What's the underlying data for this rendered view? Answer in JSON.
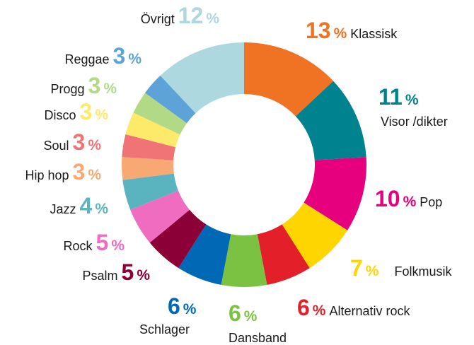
{
  "chart_data": {
    "type": "donut",
    "unit": "%",
    "categories": [
      "Klassisk",
      "Visor /dikter",
      "Pop",
      "Folkmusik",
      "Alternativ rock",
      "Dansband",
      "Schlager",
      "Psalm",
      "Rock",
      "Jazz",
      "Hip hop",
      "Soul",
      "Disco",
      "Progg",
      "Reggae",
      "Övrigt"
    ],
    "values": [
      13,
      11,
      10,
      7,
      6,
      6,
      6,
      5,
      5,
      4,
      3,
      3,
      3,
      3,
      3,
      12
    ],
    "colors": [
      "#f07324",
      "#00838f",
      "#e6007e",
      "#ffd500",
      "#e3202a",
      "#7cc242",
      "#0068b4",
      "#8b0036",
      "#f06cc0",
      "#5ab4c0",
      "#f7a873",
      "#f07476",
      "#fde96a",
      "#b2d986",
      "#5ea3d8",
      "#add8e0"
    ]
  }
}
